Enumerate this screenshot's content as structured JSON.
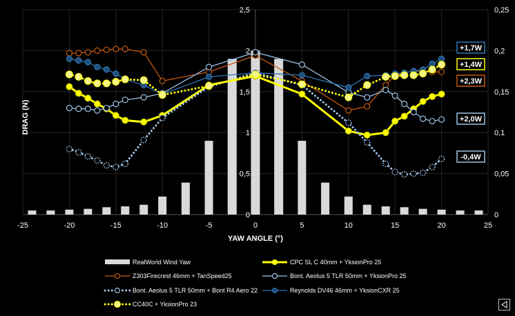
{
  "chart_data": {
    "type": "line",
    "title": "",
    "xlabel": "YAW ANGLE (°)",
    "ylabel": "DRAG (N)",
    "xlim": [
      -25,
      25
    ],
    "ylim": [
      0,
      2.5
    ],
    "y2lim": [
      0,
      0.25
    ],
    "x_ticks": [
      "-25",
      "-20",
      "-15",
      "-10",
      "-5",
      "0",
      "5",
      "10",
      "15",
      "20",
      "25"
    ],
    "y_ticks": [
      "0",
      "0,5",
      "1",
      "1,5",
      "2",
      "2,5"
    ],
    "y2_ticks": [
      "0",
      "0,05",
      "0,1",
      "0,15",
      "0,2",
      "0,25"
    ],
    "grid": true,
    "legend_position": "bottom",
    "bars": {
      "name": "RealWorld Wind Yaw",
      "axis": "right",
      "color": "#d9d9d9",
      "x": [
        -24,
        -22,
        -20,
        -18,
        -16,
        -14,
        -12,
        -10,
        -7.5,
        -5,
        -2.5,
        0,
        2.5,
        5,
        7.5,
        10,
        12,
        14,
        16,
        18,
        20,
        22,
        24
      ],
      "values": [
        0.005,
        0.005,
        0.006,
        0.007,
        0.009,
        0.01,
        0.012,
        0.022,
        0.039,
        0.09,
        0.19,
        0.2,
        0.19,
        0.09,
        0.039,
        0.022,
        0.012,
        0.01,
        0.009,
        0.007,
        0.006,
        0.005,
        0.005
      ]
    },
    "x": [
      -20,
      -19,
      -18,
      -17,
      -16,
      -15,
      -14,
      -12,
      -10,
      -5,
      0,
      5,
      10,
      12,
      14,
      15,
      16,
      17,
      18,
      19,
      20
    ],
    "series": [
      {
        "name": "CPC SL C 40mm + YksionPro 25",
        "color": "#ffff00",
        "style": "thick-yellow",
        "values": [
          1.56,
          1.48,
          1.42,
          1.35,
          1.29,
          1.21,
          1.15,
          1.13,
          1.21,
          1.58,
          1.69,
          1.47,
          1.02,
          0.97,
          1.0,
          1.14,
          1.2,
          1.29,
          1.38,
          1.44,
          1.47
        ]
      },
      {
        "name": "Z303Firecrest 46mm + TanSpeed25",
        "color": "#c55a11",
        "style": "open-circle",
        "values": [
          1.97,
          1.97,
          1.98,
          2.0,
          2.01,
          2.02,
          2.02,
          1.98,
          1.63,
          1.74,
          1.94,
          1.63,
          1.27,
          1.32,
          1.58,
          1.7,
          1.73,
          1.75,
          1.75,
          1.74,
          1.74
        ]
      },
      {
        "name": "Bont. Aeolus 5 TLR 50mm + YksionPro 25",
        "color": "#9dc3e6",
        "style": "open-circle",
        "values": [
          1.3,
          1.29,
          1.29,
          1.27,
          1.3,
          1.35,
          1.4,
          1.43,
          1.48,
          1.8,
          1.98,
          1.83,
          1.49,
          1.43,
          1.52,
          1.45,
          1.35,
          1.25,
          1.17,
          1.14,
          1.16
        ]
      },
      {
        "name": "Bont. Aeolus 5 TLR 50mm + Bont R4  Aero 22",
        "color": "#9dc3e6",
        "style": "dotted-open",
        "values": [
          0.8,
          0.76,
          0.71,
          0.66,
          0.6,
          0.58,
          0.62,
          0.91,
          1.18,
          1.56,
          1.73,
          1.58,
          1.12,
          0.88,
          0.62,
          0.52,
          0.49,
          0.5,
          0.51,
          0.58,
          0.68
        ]
      },
      {
        "name": "Reynolds DV46 46mm + YksionCXR 25",
        "color": "#2e75b6",
        "style": "filled-circle",
        "values": [
          1.9,
          1.88,
          1.86,
          1.8,
          1.77,
          1.72,
          1.65,
          1.58,
          1.47,
          1.68,
          1.73,
          1.7,
          1.55,
          1.69,
          1.7,
          1.72,
          1.73,
          1.75,
          1.77,
          1.84,
          1.9
        ]
      },
      {
        "name": "CC40C + YksionPro 23",
        "color": "#ffff00",
        "style": "dotted-yellow",
        "values": [
          1.71,
          1.68,
          1.63,
          1.6,
          1.6,
          1.62,
          1.65,
          1.64,
          1.46,
          1.57,
          1.71,
          1.59,
          1.43,
          1.58,
          1.68,
          1.69,
          1.7,
          1.7,
          1.72,
          1.77,
          1.83
        ]
      }
    ],
    "annotations": [
      {
        "text": "+1,7W",
        "border": "#2e75b6"
      },
      {
        "text": "+1,4W",
        "border": "#ffff00"
      },
      {
        "text": "+2,3W",
        "border": "#c55a11"
      },
      {
        "text": "+2,0W",
        "border": "#9dc3e6"
      },
      {
        "text": "-0,4W",
        "border": "#9dc3e6"
      }
    ]
  }
}
